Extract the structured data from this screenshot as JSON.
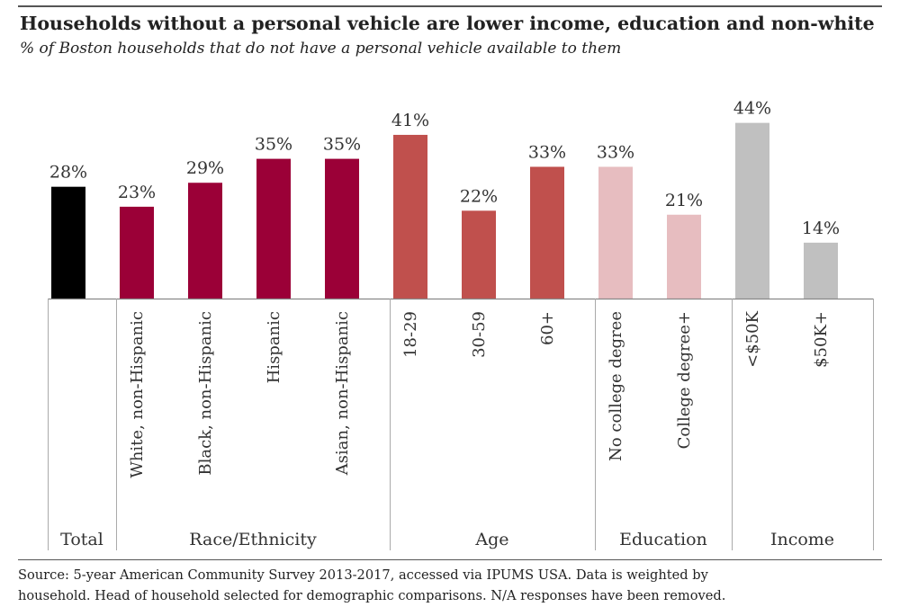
{
  "title": "Households without a personal vehicle are lower income, education and non-white",
  "subtitle": "% of Boston households that do not have a personal vehicle available to them",
  "source": [
    "Source: 5-year American Community Survey 2013-2017, accessed via IPUMS USA. Data is weighted by",
    "household. Head of household selected for demographic comparisons. N/A responses have been removed."
  ],
  "chart_data": {
    "type": "bar",
    "title": "Households without a personal vehicle are lower income, education and non-white",
    "subtitle": "% of Boston households that do not have a personal vehicle available to them",
    "xlabel": "",
    "ylabel": "",
    "ylim": [
      0,
      45
    ],
    "grid": false,
    "legend": "none",
    "value_suffix": "%",
    "categories": [
      "Total",
      "White, non-Hispanic",
      "Black, non-Hispanic",
      "Hispanic",
      "Asian, non-Hispanic",
      "18-29",
      "30-59",
      "60+",
      "No college degree",
      "College degree+",
      "<$50K",
      "$50K+"
    ],
    "values": [
      28,
      23,
      29,
      35,
      35,
      41,
      22,
      33,
      33,
      21,
      44,
      14
    ],
    "data_labels": [
      "28%",
      "23%",
      "29%",
      "35%",
      "35%",
      "41%",
      "22%",
      "33%",
      "33%",
      "21%",
      "44%",
      "14%"
    ],
    "groups": [
      {
        "name": "Total",
        "count": 1,
        "color": "#000000"
      },
      {
        "name": "Race/Ethnicity",
        "count": 4,
        "color": "#9b0037"
      },
      {
        "name": "Age",
        "count": 3,
        "color": "#c0504d"
      },
      {
        "name": "Education",
        "count": 2,
        "color": "#e7bdc0"
      },
      {
        "name": "Income",
        "count": 2,
        "color": "#c0c0c0"
      }
    ]
  }
}
